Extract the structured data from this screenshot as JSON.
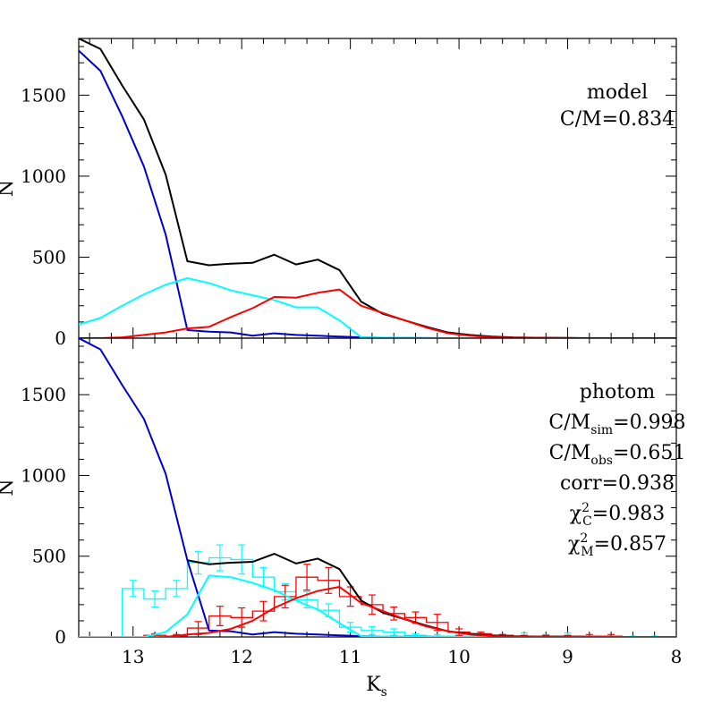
{
  "chart_data": [
    {
      "type": "line",
      "xlabel": "K",
      "xlabel_sub": "s",
      "ylabel": "N",
      "xlim": [
        13.5,
        8
      ],
      "ylim": [
        0,
        1850
      ],
      "x_ticks": [
        "13",
        "12",
        "11",
        "10",
        "9",
        "8"
      ],
      "y_ticks": [
        "0",
        "500",
        "1000",
        "1500"
      ],
      "annotations": [
        {
          "parts": [
            {
              "t": "model"
            }
          ]
        },
        {
          "parts": [
            {
              "t": "C/M=0.834"
            }
          ]
        }
      ],
      "series": [
        {
          "color": "#000000",
          "x": [
            13.5,
            13.3,
            13.1,
            12.9,
            12.7,
            12.5,
            12.3,
            12.1,
            11.9,
            11.7,
            11.5,
            11.3,
            11.1,
            10.9,
            10.7,
            10.5,
            10.3,
            10.1,
            9.9,
            9.7,
            9.5,
            9.3,
            9.1,
            8.9,
            8.7,
            8.5,
            8.3,
            8.1,
            8.0
          ],
          "y": [
            1850,
            1785,
            1560,
            1350,
            1010,
            475,
            450,
            460,
            465,
            515,
            455,
            485,
            420,
            225,
            150,
            110,
            70,
            35,
            20,
            10,
            5,
            3,
            2,
            1,
            0,
            0,
            0,
            0,
            0
          ]
        },
        {
          "color": "#0000cc",
          "x": [
            13.5,
            13.3,
            13.1,
            12.9,
            12.7,
            12.5,
            12.3,
            12.1,
            11.9,
            11.7,
            11.5,
            11.3,
            11.1,
            10.9,
            10.7,
            10.5,
            10.3,
            10.1,
            9.9,
            9.7,
            9.5,
            9.3,
            9.1,
            8.9,
            8.7,
            8.5,
            8.3,
            8.1,
            8.0
          ],
          "y": [
            1775,
            1650,
            1370,
            1060,
            640,
            50,
            40,
            35,
            15,
            30,
            20,
            15,
            10,
            5,
            3,
            2,
            1,
            0,
            0,
            0,
            0,
            0,
            0,
            0,
            0,
            0,
            0,
            0,
            0
          ]
        },
        {
          "color": "#00ffff",
          "x": [
            13.5,
            13.3,
            13.1,
            12.9,
            12.7,
            12.5,
            12.3,
            12.1,
            11.9,
            11.7,
            11.5,
            11.3,
            11.1,
            10.9,
            10.7,
            10.5,
            10.3,
            10.1,
            9.9,
            9.7,
            9.5,
            9.3,
            9.1,
            8.9,
            8.7,
            8.5,
            8.3,
            8.1,
            8.0
          ],
          "y": [
            85,
            125,
            200,
            270,
            330,
            370,
            340,
            295,
            265,
            235,
            190,
            190,
            110,
            5,
            3,
            2,
            1,
            0,
            0,
            0,
            0,
            0,
            0,
            0,
            0,
            0,
            0,
            0,
            0
          ]
        },
        {
          "color": "#ff0000",
          "x": [
            13.5,
            13.3,
            13.1,
            12.9,
            12.7,
            12.5,
            12.3,
            12.1,
            11.9,
            11.7,
            11.5,
            11.3,
            11.1,
            10.9,
            10.7,
            10.5,
            10.3,
            10.1,
            9.9,
            9.7,
            9.5,
            9.3,
            9.1,
            8.9,
            8.7,
            8.5,
            8.3,
            8.1,
            8.0
          ],
          "y": [
            0,
            0,
            5,
            20,
            35,
            60,
            70,
            130,
            185,
            255,
            250,
            280,
            300,
            200,
            155,
            110,
            65,
            30,
            15,
            5,
            3,
            2,
            1,
            0,
            0,
            0,
            0,
            0,
            0
          ]
        }
      ]
    },
    {
      "type": "line",
      "xlabel": "K",
      "xlabel_sub": "s",
      "ylabel": "N",
      "xlim": [
        13.5,
        8
      ],
      "ylim": [
        0,
        1850
      ],
      "x_ticks": [
        "13",
        "12",
        "11",
        "10",
        "9",
        "8"
      ],
      "y_ticks": [
        "0",
        "500",
        "1000",
        "1500"
      ],
      "annotations": [
        {
          "parts": [
            {
              "t": "photom"
            }
          ]
        },
        {
          "parts": [
            {
              "t": "C/M"
            },
            {
              "t": "sim",
              "sub": true
            },
            {
              "t": "=0.998"
            }
          ]
        },
        {
          "parts": [
            {
              "t": "C/M"
            },
            {
              "t": "obs",
              "sub": true
            },
            {
              "t": "=0.651"
            }
          ]
        },
        {
          "parts": [
            {
              "t": "corr=0.938"
            }
          ]
        },
        {
          "parts": [
            {
              "t": "χ"
            },
            {
              "t": "2",
              "sup": true
            },
            {
              "t": "C",
              "sub": true
            },
            {
              "t": "=0.983"
            }
          ]
        },
        {
          "parts": [
            {
              "t": "χ"
            },
            {
              "t": "2",
              "sup": true
            },
            {
              "t": "M",
              "sub": true
            },
            {
              "t": "=0.857"
            }
          ]
        }
      ],
      "series": [
        {
          "color": "#000000",
          "x": [
            12.5,
            12.3,
            12.1,
            11.9,
            11.7,
            11.5,
            11.3,
            11.1,
            10.9,
            10.7,
            10.5,
            10.3,
            10.1,
            9.9,
            9.7,
            9.5,
            9.3,
            9.1,
            8.9,
            8.7,
            8.5,
            8.3,
            8.1,
            8.0
          ],
          "y": [
            475,
            450,
            460,
            465,
            515,
            455,
            485,
            420,
            225,
            150,
            110,
            70,
            35,
            20,
            10,
            5,
            3,
            2,
            1,
            0,
            0,
            0,
            0,
            0
          ]
        },
        {
          "color": "#0000cc",
          "x": [
            13.5,
            13.3,
            13.1,
            12.9,
            12.7,
            12.5,
            12.3,
            12.1,
            11.9,
            11.7,
            11.5,
            11.3,
            11.1,
            10.9,
            10.7,
            10.5,
            10.3,
            10.1,
            9.9,
            9.7,
            9.5,
            9.3,
            9.1,
            8.9,
            8.7,
            8.5,
            8.3,
            8.1,
            8.0
          ],
          "y": [
            1850,
            1780,
            1560,
            1350,
            1010,
            475,
            40,
            35,
            15,
            30,
            20,
            15,
            10,
            5,
            3,
            2,
            1,
            0,
            0,
            0,
            0,
            0,
            0,
            0,
            0,
            0,
            0,
            0,
            0
          ]
        },
        {
          "color": "#00ffff",
          "x": [
            13.5,
            13.3,
            13.1,
            12.9,
            12.7,
            12.5,
            12.3,
            12.1,
            11.9,
            11.7,
            11.5,
            11.3,
            11.1,
            10.9,
            10.7,
            10.5,
            10.3,
            10.1,
            9.9,
            9.7,
            9.5,
            9.3,
            9.1,
            8.9,
            8.7,
            8.5,
            8.3,
            8.1,
            8.0
          ],
          "y": [
            0,
            0,
            0,
            0,
            30,
            140,
            380,
            370,
            335,
            290,
            225,
            170,
            85,
            5,
            3,
            2,
            1,
            0,
            0,
            0,
            0,
            0,
            0,
            0,
            0,
            0,
            0,
            0,
            0
          ]
        },
        {
          "color": "#ff0000",
          "x": [
            12.7,
            12.5,
            12.3,
            12.1,
            11.9,
            11.7,
            11.5,
            11.3,
            11.1,
            10.9,
            10.7,
            10.5,
            10.3,
            10.1,
            9.9,
            9.7,
            9.5,
            9.3,
            9.1,
            8.9,
            8.7,
            8.5,
            8.3,
            8.1,
            8.0
          ],
          "y": [
            0,
            15,
            25,
            50,
            100,
            180,
            240,
            285,
            310,
            210,
            160,
            110,
            65,
            35,
            15,
            5,
            3,
            2,
            1,
            0,
            0,
            0,
            0,
            0,
            0
          ]
        }
      ],
      "histograms": [
        {
          "color": "#00ffff",
          "bin_width": 0.2,
          "centers": [
            13.0,
            12.8,
            12.6,
            12.4,
            12.2,
            12.0,
            11.8,
            11.6,
            11.4,
            11.2,
            11.0,
            10.8,
            10.6,
            10.4,
            10.2,
            10.0,
            9.8,
            9.6,
            9.4,
            9.2,
            9.0,
            8.8,
            8.6,
            8.4,
            8.2
          ],
          "values": [
            300,
            235,
            300,
            460,
            490,
            480,
            370,
            280,
            230,
            165,
            60,
            40,
            30,
            10,
            5,
            5,
            5,
            5,
            5,
            5,
            5,
            0,
            0,
            0,
            0
          ],
          "errors": [
            50,
            50,
            50,
            70,
            80,
            90,
            60,
            50,
            50,
            40,
            30,
            25,
            20,
            10,
            10,
            5,
            5,
            10,
            20,
            10,
            20,
            5,
            5,
            5,
            5
          ]
        },
        {
          "color": "#ff0000",
          "bin_width": 0.2,
          "centers": [
            12.8,
            12.6,
            12.4,
            12.2,
            12.0,
            11.8,
            11.6,
            11.4,
            11.2,
            11.0,
            10.8,
            10.6,
            10.4,
            10.2,
            10.0,
            9.8,
            9.6,
            9.4,
            9.2,
            9.0,
            8.8,
            8.6
          ],
          "values": [
            10,
            5,
            55,
            130,
            120,
            160,
            250,
            370,
            350,
            250,
            200,
            145,
            120,
            90,
            30,
            20,
            10,
            5,
            5,
            5,
            5,
            5
          ],
          "errors": [
            10,
            10,
            40,
            60,
            60,
            60,
            70,
            80,
            80,
            60,
            60,
            40,
            35,
            50,
            20,
            10,
            5,
            5,
            5,
            5,
            10,
            10
          ]
        }
      ]
    }
  ]
}
